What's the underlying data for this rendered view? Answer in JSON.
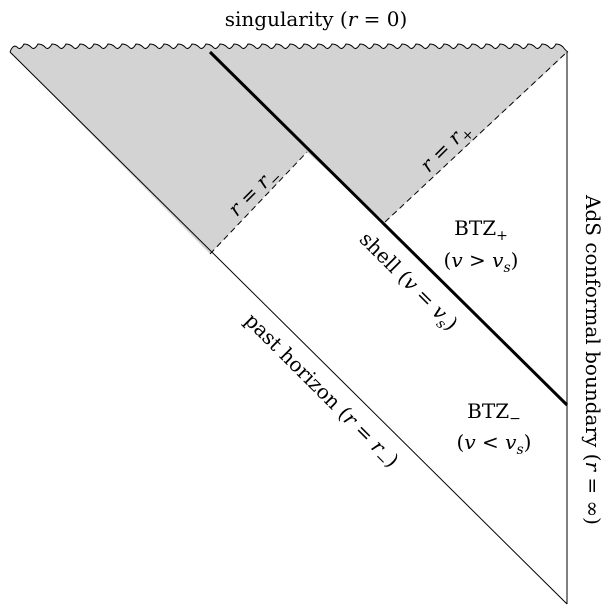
{
  "diagram": {
    "title": {
      "text": "singularity (",
      "var": "r",
      "rest": " = 0)"
    },
    "labels": {
      "r_minus": {
        "a": "r",
        "b": " = ",
        "c": "r",
        "sub": "−"
      },
      "r_plus": {
        "a": "r",
        "b": " = ",
        "c": "r",
        "sub": "+"
      },
      "btz_plus": {
        "main": "BTZ",
        "sub": "+",
        "cond_open": "(",
        "v": "v",
        "op": " > ",
        "vs": "v",
        "s": "s",
        "cond_close": ")"
      },
      "btz_minus": {
        "main": "BTZ",
        "sub": "−",
        "cond_open": "(",
        "v": "v",
        "op": " < ",
        "vs": "v",
        "s": "s",
        "cond_close": ")"
      },
      "shell": {
        "word": "shell (",
        "v": "v",
        "op": " = ",
        "vs": "v",
        "s": "s",
        "close": ")"
      },
      "past_horizon": {
        "word": "past horizon (",
        "r": "r",
        "op": " = ",
        "rr": "r",
        "sub": "−",
        "close": ")"
      },
      "boundary": {
        "word": "AdS conformal boundary (",
        "r": "r",
        "op": " = ∞)"
      }
    },
    "colors": {
      "shaded": "#d3d3d3",
      "line": "#000000"
    }
  }
}
